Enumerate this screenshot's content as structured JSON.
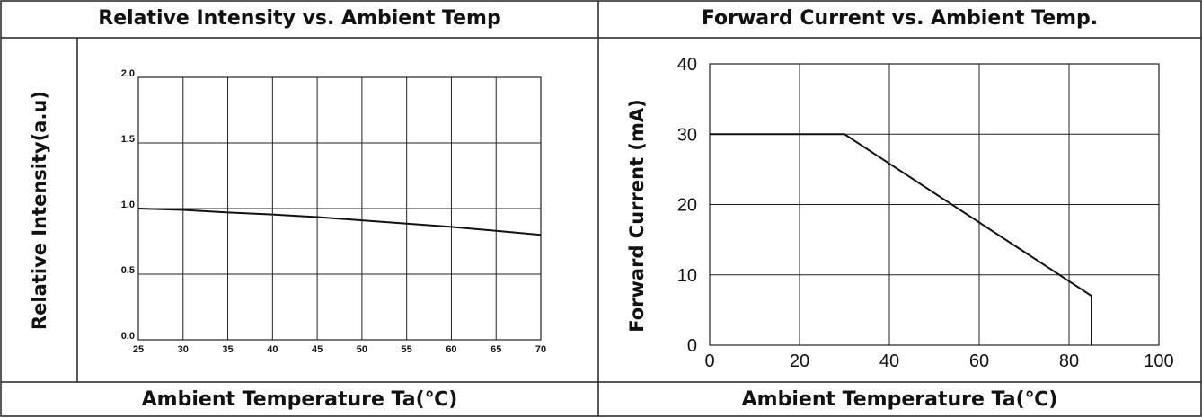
{
  "left_panel": {
    "header": "Relative Intensity vs. Ambient Temp",
    "footer": "Ambient Temperature Ta(℃)",
    "ylabel": "Relative Intensity(a.u)"
  },
  "right_panel": {
    "header": "Forward Current vs. Ambient Temp.",
    "footer": "Ambient Temperature Ta(℃)",
    "ylabel": "Forward Current (mA)"
  },
  "chart_data": [
    {
      "type": "line",
      "title": "Relative Intensity vs. Ambient Temp",
      "xlabel": "Ambient Temperature Ta(℃)",
      "ylabel": "Relative Intensity(a.u)",
      "xlim": [
        25,
        70
      ],
      "ylim": [
        0,
        2.0
      ],
      "x_ticks": [
        "25",
        "30",
        "35",
        "40",
        "45",
        "50",
        "55",
        "60",
        "65",
        "70"
      ],
      "y_ticks": [
        "0.0",
        "0.5",
        "1.0",
        "1.5",
        "2.0"
      ],
      "x_tick_values": [
        25,
        30,
        35,
        40,
        45,
        50,
        55,
        60,
        65,
        70
      ],
      "y_tick_values": [
        0,
        0.5,
        1.0,
        1.5,
        2.0
      ],
      "grid": true,
      "series": [
        {
          "x": [
            25,
            30,
            35,
            40,
            45,
            50,
            55,
            60,
            65,
            70
          ],
          "values": [
            1.0,
            0.99,
            0.97,
            0.955,
            0.935,
            0.91,
            0.885,
            0.86,
            0.83,
            0.8
          ]
        }
      ]
    },
    {
      "type": "line",
      "title": "Forward Current vs. Ambient Temp.",
      "xlabel": "Ambient Temperature Ta(℃)",
      "ylabel": "Forward Current (mA)",
      "xlim": [
        0,
        100
      ],
      "ylim": [
        0,
        40
      ],
      "x_ticks": [
        "0",
        "20",
        "40",
        "60",
        "80",
        "100"
      ],
      "y_ticks": [
        "0",
        "10",
        "20",
        "30",
        "40"
      ],
      "x_tick_values": [
        0,
        20,
        40,
        60,
        80,
        100
      ],
      "y_tick_values": [
        0,
        10,
        20,
        30,
        40
      ],
      "grid": true,
      "series": [
        {
          "x": [
            0,
            30,
            85,
            85
          ],
          "values": [
            30,
            30,
            7,
            0
          ]
        }
      ]
    }
  ]
}
